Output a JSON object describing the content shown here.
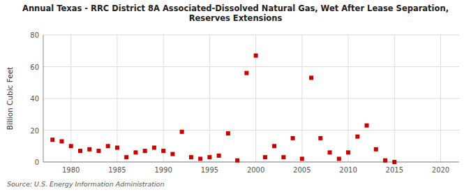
{
  "chart_data": {
    "type": "scatter",
    "title": "Annual Texas - RRC District 8A Associated-Dissolved Natural Gas, Wet After Lease Separation,\nReserves Extensions",
    "ylabel": "Billion Cubic Feet",
    "source": "Source: U.S. Energy Information Administration",
    "color": "#cc0000",
    "marker": "square",
    "grid": true,
    "xlim": [
      1977,
      2022
    ],
    "ylim": [
      0,
      80
    ],
    "xticks": [
      1980,
      1985,
      1990,
      1995,
      2000,
      2005,
      2010,
      2015,
      2020
    ],
    "yticks": [
      0,
      20,
      40,
      60,
      80
    ],
    "x": [
      1978,
      1979,
      1980,
      1981,
      1982,
      1983,
      1984,
      1985,
      1986,
      1987,
      1988,
      1989,
      1990,
      1991,
      1992,
      1993,
      1994,
      1995,
      1996,
      1997,
      1998,
      1999,
      2000,
      2001,
      2002,
      2003,
      2004,
      2005,
      2006,
      2007,
      2008,
      2009,
      2010,
      2011,
      2012,
      2013,
      2014,
      2015
    ],
    "values": [
      14,
      13,
      10,
      7,
      8,
      7,
      10,
      9,
      3,
      6,
      7,
      9,
      7,
      5,
      19,
      3,
      2,
      3,
      4,
      18,
      1,
      56,
      67,
      3,
      10,
      3,
      15,
      2,
      53,
      15,
      6,
      2,
      6,
      16,
      23,
      8,
      1,
      0
    ]
  }
}
